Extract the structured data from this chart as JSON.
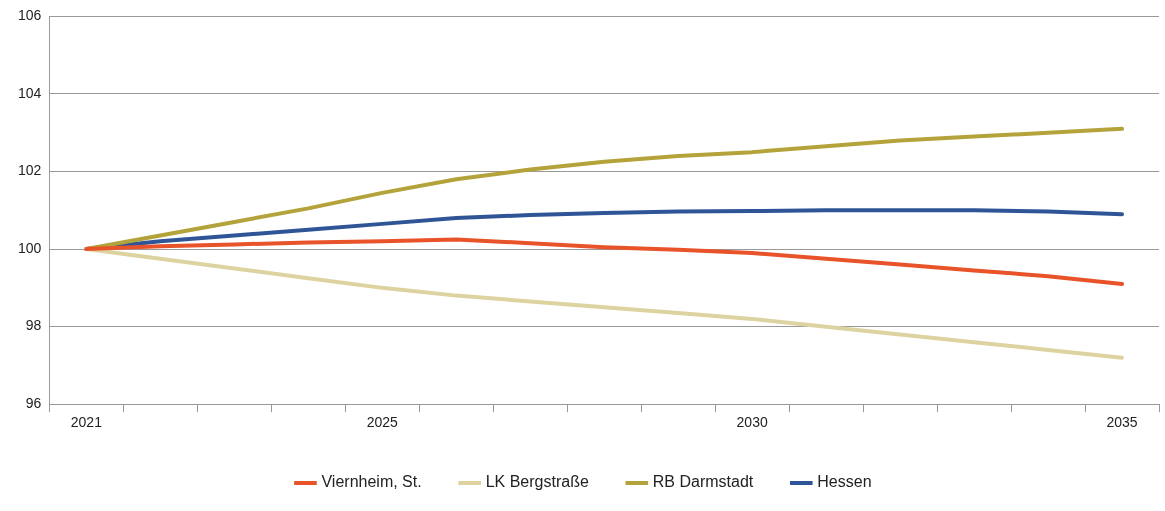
{
  "chart_data": {
    "type": "line",
    "categories": [
      "2021",
      null,
      null,
      null,
      "2025",
      null,
      null,
      null,
      null,
      "2030",
      null,
      null,
      null,
      null,
      "2035"
    ],
    "series": [
      {
        "name": "Viernheim, St.",
        "color": "#e8532a",
        "values": [
          100,
          100.07,
          100.12,
          100.17,
          100.2,
          100.25,
          100.15,
          100.05,
          99.98,
          99.9,
          99.75,
          99.6,
          99.45,
          99.3,
          99.1
        ]
      },
      {
        "name": "LK Bergstraße",
        "color": "#ddd3a0",
        "values": [
          100,
          99.75,
          99.5,
          99.25,
          99.0,
          98.8,
          98.65,
          98.5,
          98.35,
          98.2,
          98.0,
          97.8,
          97.6,
          97.4,
          97.2
        ]
      },
      {
        "name": "RB Darmstadt",
        "color": "#b3a33a",
        "values": [
          100,
          100.35,
          100.7,
          101.05,
          101.45,
          101.8,
          102.05,
          102.25,
          102.4,
          102.5,
          102.65,
          102.8,
          102.9,
          103.0,
          103.1
        ]
      },
      {
        "name": "Hessen",
        "color": "#2f5597",
        "values": [
          100,
          100.2,
          100.35,
          100.5,
          100.65,
          100.8,
          100.88,
          100.93,
          100.97,
          100.98,
          101.0,
          101.0,
          101.0,
          100.97,
          100.9
        ]
      }
    ],
    "ylim": [
      96,
      106
    ],
    "yticks": [
      96,
      98,
      100,
      102,
      104,
      106
    ],
    "grid": "y",
    "legend": "bottom",
    "marker": "none",
    "line_style": "solid"
  }
}
